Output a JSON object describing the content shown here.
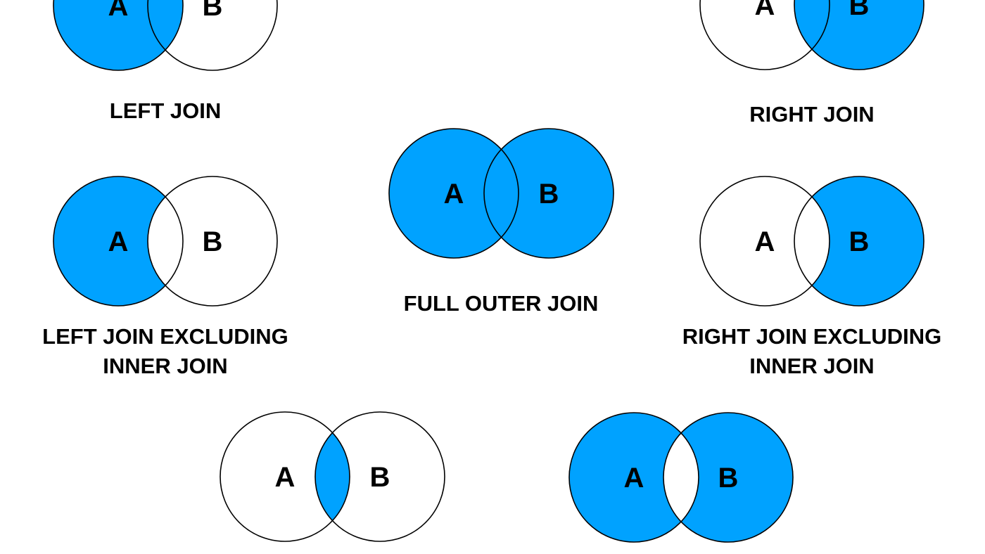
{
  "colors": {
    "fill": "#00a2ff",
    "stroke": "#000000",
    "background": "#ffffff"
  },
  "diagrams": [
    {
      "id": "left-join",
      "caption": [
        "LEFT JOIN"
      ],
      "label_a": "A",
      "label_b": "B",
      "filled_regions": [
        "a_only",
        "both"
      ]
    },
    {
      "id": "right-join",
      "caption": [
        "RIGHT JOIN"
      ],
      "label_a": "A",
      "label_b": "B",
      "filled_regions": [
        "b_only",
        "both"
      ]
    },
    {
      "id": "full-outer-join",
      "caption": [
        "FULL OUTER JOIN"
      ],
      "label_a": "A",
      "label_b": "B",
      "filled_regions": [
        "a_only",
        "both",
        "b_only"
      ]
    },
    {
      "id": "left-join-excluding-inner-join",
      "caption": [
        "LEFT JOIN EXCLUDING",
        "INNER JOIN"
      ],
      "label_a": "A",
      "label_b": "B",
      "filled_regions": [
        "a_only"
      ]
    },
    {
      "id": "right-join-excluding-inner-join",
      "caption": [
        "RIGHT JOIN EXCLUDING",
        "INNER JOIN"
      ],
      "label_a": "A",
      "label_b": "B",
      "filled_regions": [
        "b_only"
      ]
    },
    {
      "id": "inner-join",
      "caption": [],
      "label_a": "A",
      "label_b": "B",
      "filled_regions": [
        "both"
      ]
    },
    {
      "id": "outer-join-excluding-inner-join",
      "caption": [],
      "label_a": "A",
      "label_b": "B",
      "filled_regions": [
        "a_only",
        "b_only"
      ]
    }
  ]
}
